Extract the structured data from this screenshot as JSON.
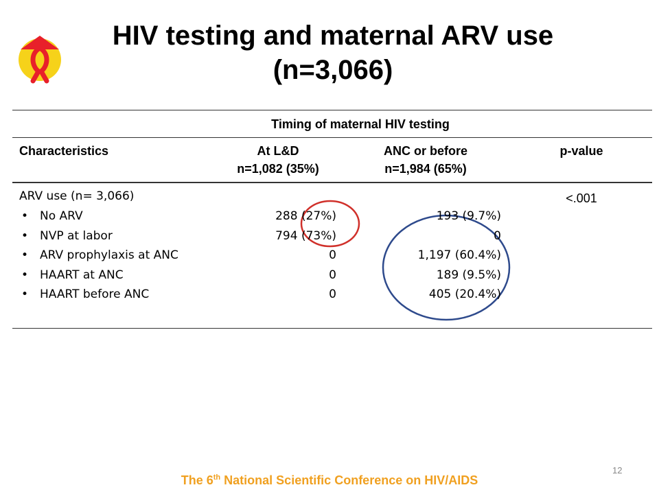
{
  "header": {
    "title_lines": [
      "HIV testing and maternal ARV use",
      "(n=3,066)"
    ]
  },
  "table": {
    "group_header": "Timing of maternal HIV testing",
    "columns": [
      [
        "Characteristics"
      ],
      [
        "At L&D",
        "n=1,082 (35%)"
      ],
      [
        "ANC or before",
        "n=1,984 (65%)"
      ],
      [
        "p-value"
      ]
    ],
    "section": {
      "label": "ARV use (n= 3,066)",
      "p_value": "<.001"
    },
    "rows": [
      [
        "No ARV",
        "288 (27%)",
        "193 (9.7%)"
      ],
      [
        "NVP at labor",
        "794 (73%)",
        "0"
      ],
      [
        "ARV prophylaxis at ANC",
        "0",
        "1,197 (60.4%)"
      ],
      [
        "HAART at ANC",
        "0",
        "189 (9.5%)"
      ],
      [
        "HAART before ANC",
        "0",
        "405 (20.4%)"
      ]
    ]
  },
  "footer": {
    "text_parts": [
      "The 6",
      "th",
      " National Scientific Conference on HIV/AIDS"
    ],
    "page_number": "12"
  }
}
